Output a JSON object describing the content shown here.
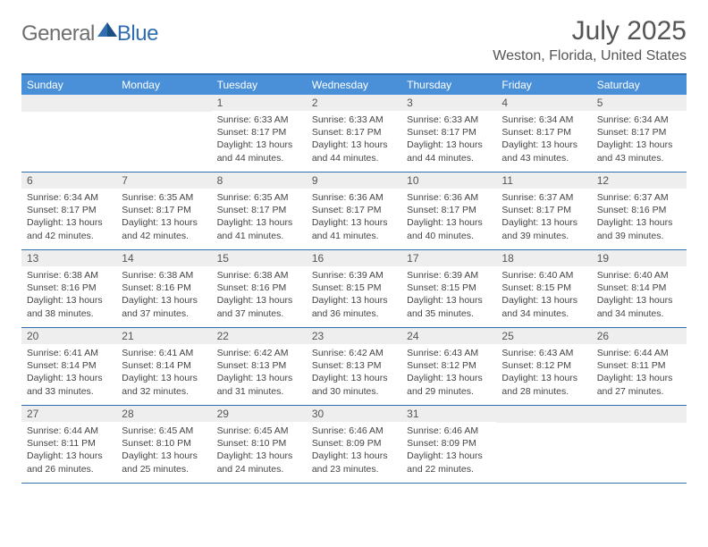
{
  "brand": {
    "part1": "General",
    "part2": "Blue"
  },
  "title": "July 2025",
  "location": "Weston, Florida, United States",
  "colors": {
    "header_bg": "#4a90d9",
    "header_text": "#ffffff",
    "border": "#2f6fb0",
    "daynum_bg": "#eeeeee",
    "text": "#555555"
  },
  "weekdays": [
    "Sunday",
    "Monday",
    "Tuesday",
    "Wednesday",
    "Thursday",
    "Friday",
    "Saturday"
  ],
  "weeks": [
    [
      {
        "n": "",
        "sr": "",
        "ss": "",
        "dl": ""
      },
      {
        "n": "",
        "sr": "",
        "ss": "",
        "dl": ""
      },
      {
        "n": "1",
        "sr": "Sunrise: 6:33 AM",
        "ss": "Sunset: 8:17 PM",
        "dl": "Daylight: 13 hours and 44 minutes."
      },
      {
        "n": "2",
        "sr": "Sunrise: 6:33 AM",
        "ss": "Sunset: 8:17 PM",
        "dl": "Daylight: 13 hours and 44 minutes."
      },
      {
        "n": "3",
        "sr": "Sunrise: 6:33 AM",
        "ss": "Sunset: 8:17 PM",
        "dl": "Daylight: 13 hours and 44 minutes."
      },
      {
        "n": "4",
        "sr": "Sunrise: 6:34 AM",
        "ss": "Sunset: 8:17 PM",
        "dl": "Daylight: 13 hours and 43 minutes."
      },
      {
        "n": "5",
        "sr": "Sunrise: 6:34 AM",
        "ss": "Sunset: 8:17 PM",
        "dl": "Daylight: 13 hours and 43 minutes."
      }
    ],
    [
      {
        "n": "6",
        "sr": "Sunrise: 6:34 AM",
        "ss": "Sunset: 8:17 PM",
        "dl": "Daylight: 13 hours and 42 minutes."
      },
      {
        "n": "7",
        "sr": "Sunrise: 6:35 AM",
        "ss": "Sunset: 8:17 PM",
        "dl": "Daylight: 13 hours and 42 minutes."
      },
      {
        "n": "8",
        "sr": "Sunrise: 6:35 AM",
        "ss": "Sunset: 8:17 PM",
        "dl": "Daylight: 13 hours and 41 minutes."
      },
      {
        "n": "9",
        "sr": "Sunrise: 6:36 AM",
        "ss": "Sunset: 8:17 PM",
        "dl": "Daylight: 13 hours and 41 minutes."
      },
      {
        "n": "10",
        "sr": "Sunrise: 6:36 AM",
        "ss": "Sunset: 8:17 PM",
        "dl": "Daylight: 13 hours and 40 minutes."
      },
      {
        "n": "11",
        "sr": "Sunrise: 6:37 AM",
        "ss": "Sunset: 8:17 PM",
        "dl": "Daylight: 13 hours and 39 minutes."
      },
      {
        "n": "12",
        "sr": "Sunrise: 6:37 AM",
        "ss": "Sunset: 8:16 PM",
        "dl": "Daylight: 13 hours and 39 minutes."
      }
    ],
    [
      {
        "n": "13",
        "sr": "Sunrise: 6:38 AM",
        "ss": "Sunset: 8:16 PM",
        "dl": "Daylight: 13 hours and 38 minutes."
      },
      {
        "n": "14",
        "sr": "Sunrise: 6:38 AM",
        "ss": "Sunset: 8:16 PM",
        "dl": "Daylight: 13 hours and 37 minutes."
      },
      {
        "n": "15",
        "sr": "Sunrise: 6:38 AM",
        "ss": "Sunset: 8:16 PM",
        "dl": "Daylight: 13 hours and 37 minutes."
      },
      {
        "n": "16",
        "sr": "Sunrise: 6:39 AM",
        "ss": "Sunset: 8:15 PM",
        "dl": "Daylight: 13 hours and 36 minutes."
      },
      {
        "n": "17",
        "sr": "Sunrise: 6:39 AM",
        "ss": "Sunset: 8:15 PM",
        "dl": "Daylight: 13 hours and 35 minutes."
      },
      {
        "n": "18",
        "sr": "Sunrise: 6:40 AM",
        "ss": "Sunset: 8:15 PM",
        "dl": "Daylight: 13 hours and 34 minutes."
      },
      {
        "n": "19",
        "sr": "Sunrise: 6:40 AM",
        "ss": "Sunset: 8:14 PM",
        "dl": "Daylight: 13 hours and 34 minutes."
      }
    ],
    [
      {
        "n": "20",
        "sr": "Sunrise: 6:41 AM",
        "ss": "Sunset: 8:14 PM",
        "dl": "Daylight: 13 hours and 33 minutes."
      },
      {
        "n": "21",
        "sr": "Sunrise: 6:41 AM",
        "ss": "Sunset: 8:14 PM",
        "dl": "Daylight: 13 hours and 32 minutes."
      },
      {
        "n": "22",
        "sr": "Sunrise: 6:42 AM",
        "ss": "Sunset: 8:13 PM",
        "dl": "Daylight: 13 hours and 31 minutes."
      },
      {
        "n": "23",
        "sr": "Sunrise: 6:42 AM",
        "ss": "Sunset: 8:13 PM",
        "dl": "Daylight: 13 hours and 30 minutes."
      },
      {
        "n": "24",
        "sr": "Sunrise: 6:43 AM",
        "ss": "Sunset: 8:12 PM",
        "dl": "Daylight: 13 hours and 29 minutes."
      },
      {
        "n": "25",
        "sr": "Sunrise: 6:43 AM",
        "ss": "Sunset: 8:12 PM",
        "dl": "Daylight: 13 hours and 28 minutes."
      },
      {
        "n": "26",
        "sr": "Sunrise: 6:44 AM",
        "ss": "Sunset: 8:11 PM",
        "dl": "Daylight: 13 hours and 27 minutes."
      }
    ],
    [
      {
        "n": "27",
        "sr": "Sunrise: 6:44 AM",
        "ss": "Sunset: 8:11 PM",
        "dl": "Daylight: 13 hours and 26 minutes."
      },
      {
        "n": "28",
        "sr": "Sunrise: 6:45 AM",
        "ss": "Sunset: 8:10 PM",
        "dl": "Daylight: 13 hours and 25 minutes."
      },
      {
        "n": "29",
        "sr": "Sunrise: 6:45 AM",
        "ss": "Sunset: 8:10 PM",
        "dl": "Daylight: 13 hours and 24 minutes."
      },
      {
        "n": "30",
        "sr": "Sunrise: 6:46 AM",
        "ss": "Sunset: 8:09 PM",
        "dl": "Daylight: 13 hours and 23 minutes."
      },
      {
        "n": "31",
        "sr": "Sunrise: 6:46 AM",
        "ss": "Sunset: 8:09 PM",
        "dl": "Daylight: 13 hours and 22 minutes."
      },
      {
        "n": "",
        "sr": "",
        "ss": "",
        "dl": ""
      },
      {
        "n": "",
        "sr": "",
        "ss": "",
        "dl": ""
      }
    ]
  ]
}
